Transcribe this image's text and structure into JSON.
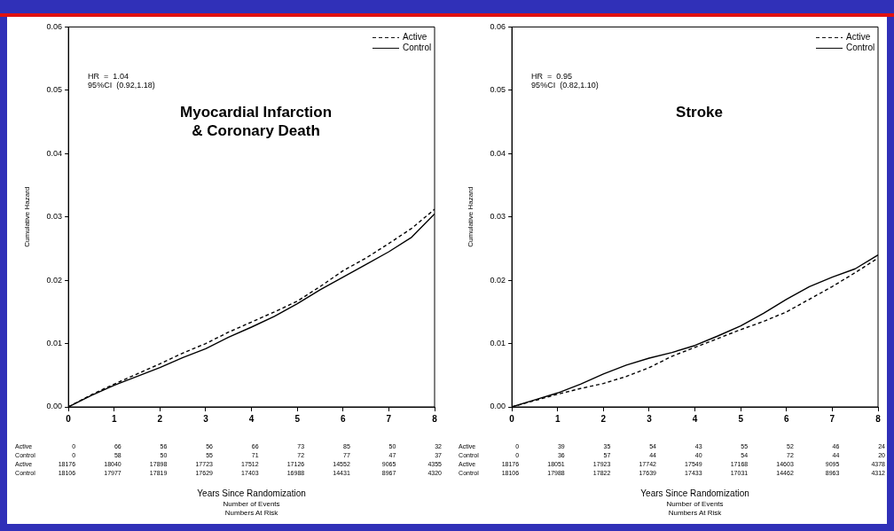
{
  "chart_data": [
    {
      "type": "line",
      "title": "Myocardial Infarction\n& Coronary Death",
      "xlabel": "Years Since Randomization",
      "ylabel": "Cumulative Hazard",
      "legend": "top right",
      "marker": "none",
      "grid": false,
      "x": [
        0,
        0.5,
        1,
        1.5,
        2,
        2.5,
        3,
        3.5,
        4,
        4.5,
        5,
        5.5,
        6,
        6.5,
        7,
        7.5,
        8
      ],
      "xlim": [
        0,
        8
      ],
      "xticks": [
        0,
        1,
        2,
        3,
        4,
        5,
        6,
        7,
        8
      ],
      "ylim": [
        0,
        0.06
      ],
      "yticks": [
        {
          "value": 0,
          "label": "0.00"
        },
        {
          "value": 0.01,
          "label": "0.01"
        },
        {
          "value": 0.02,
          "label": "0.02"
        },
        {
          "value": 0.03,
          "label": "0.03"
        },
        {
          "value": 0.04,
          "label": "0.04"
        },
        {
          "value": 0.05,
          "label": "0.05"
        },
        {
          "value": 0.06,
          "label": "0.06"
        }
      ],
      "series": [
        {
          "name": "Active",
          "color": "#000000",
          "line_style": "dashed",
          "values": [
            0,
            0.0019,
            0.0036,
            0.0052,
            0.0068,
            0.0085,
            0.01,
            0.0118,
            0.0134,
            0.015,
            0.0167,
            0.019,
            0.0215,
            0.0235,
            0.0258,
            0.0282,
            0.0312
          ]
        },
        {
          "name": "Control",
          "color": "#000000",
          "line_style": "solid",
          "values": [
            0,
            0.0018,
            0.0034,
            0.0048,
            0.0062,
            0.0078,
            0.0092,
            0.011,
            0.0126,
            0.0143,
            0.0163,
            0.0185,
            0.0205,
            0.0225,
            0.0245,
            0.0268,
            0.0305
          ]
        }
      ],
      "annotations": [
        "HR  =  1.04",
        "95%CI  (0.92,1.18)",
        "Active 0 66 56 56 66 73 85 50 32",
        "Control 0 58 50 55 71 72 77 47 37",
        "Active 18176 18040 17898 17723 17512 17126 14552 9065 4355",
        "Control 18106 17977 17819 17629 17403 16988 14431 8967 4320",
        "Number of Events",
        "Numbers At Risk"
      ]
    },
    {
      "type": "line",
      "title": "Stroke",
      "xlabel": "Years Since Randomization",
      "ylabel": "Cumulative Hazard",
      "legend": "top right",
      "marker": "none",
      "grid": false,
      "x": [
        0,
        0.5,
        1,
        1.5,
        2,
        2.5,
        3,
        3.5,
        4,
        4.5,
        5,
        5.5,
        6,
        6.5,
        7,
        7.5,
        8
      ],
      "xlim": [
        0,
        8
      ],
      "xticks": [
        0,
        1,
        2,
        3,
        4,
        5,
        6,
        7,
        8
      ],
      "ylim": [
        0,
        0.06
      ],
      "yticks": [
        {
          "value": 0,
          "label": "0.00"
        },
        {
          "value": 0.01,
          "label": "0.01"
        },
        {
          "value": 0.02,
          "label": "0.02"
        },
        {
          "value": 0.03,
          "label": "0.03"
        },
        {
          "value": 0.04,
          "label": "0.04"
        },
        {
          "value": 0.05,
          "label": "0.05"
        },
        {
          "value": 0.06,
          "label": "0.06"
        }
      ],
      "series": [
        {
          "name": "Active",
          "color": "#000000",
          "line_style": "dashed",
          "values": [
            0,
            0.001,
            0.002,
            0.0029,
            0.0037,
            0.0048,
            0.0062,
            0.008,
            0.0094,
            0.0108,
            0.0122,
            0.0135,
            0.015,
            0.017,
            0.019,
            0.0212,
            0.0235
          ]
        },
        {
          "name": "Control",
          "color": "#000000",
          "line_style": "solid",
          "values": [
            0,
            0.0011,
            0.0022,
            0.0036,
            0.0052,
            0.0066,
            0.0077,
            0.0086,
            0.0097,
            0.0112,
            0.0128,
            0.0148,
            0.017,
            0.019,
            0.0205,
            0.0218,
            0.024
          ]
        }
      ],
      "annotations": [
        "HR  =  0.95",
        "95%CI  (0.82,1.10)",
        "Active 0 39 35 54 43 55 52 46 24",
        "Control 0 36 57 44 40 54 72 44 20",
        "Active 18176 18051 17923 17742 17549 17168 14603 9095 4378",
        "Control 18106 17988 17822 17639 17433 17031 14462 8963 4312",
        "Number of Events",
        "Numbers At Risk"
      ]
    }
  ]
}
